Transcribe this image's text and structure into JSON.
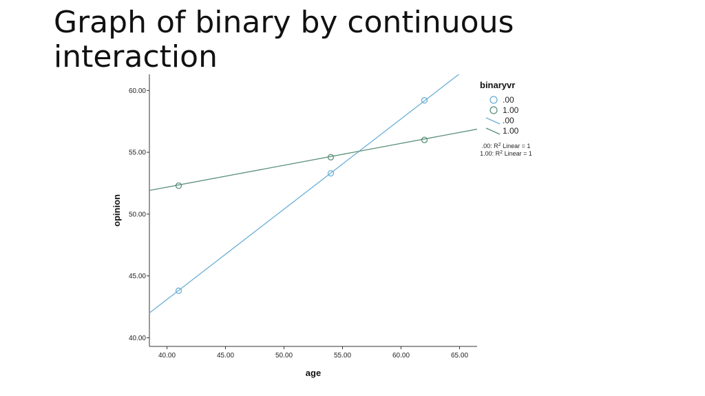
{
  "slide": {
    "title": "Graph of binary by continuous interaction"
  },
  "chart_data": {
    "type": "scatter",
    "xlabel": "age",
    "ylabel": "opinion",
    "xlim": [
      38.5,
      66.5
    ],
    "ylim": [
      39.3,
      61.3
    ],
    "x_ticks": [
      40,
      45,
      50,
      55,
      60,
      65
    ],
    "x_tick_labels": [
      "40.00",
      "45.00",
      "50.00",
      "55.00",
      "60.00",
      "65.00"
    ],
    "y_ticks": [
      40,
      45,
      50,
      55,
      60
    ],
    "y_tick_labels": [
      "40.00",
      "45.00",
      "50.00",
      "55.00",
      "60.00"
    ],
    "grid": false,
    "legend_placement": "top-right outside",
    "legend": {
      "title": "binaryvr",
      "entries": [
        {
          "label": ".00",
          "kind": "marker",
          "series": 0
        },
        {
          "label": "1.00",
          "kind": "marker",
          "series": 1
        },
        {
          "label": ".00",
          "kind": "line",
          "series": 0
        },
        {
          "label": "1.00",
          "kind": "line",
          "series": 1
        }
      ],
      "fit_notes": [
        {
          "prefix": ".00: R",
          "sup": "2",
          "suffix": " Linear = 1"
        },
        {
          "prefix": "1.00: R",
          "sup": "2",
          "suffix": " Linear = 1"
        }
      ]
    },
    "series": [
      {
        "name": ".00",
        "color": "#6aaed6",
        "points": [
          [
            41,
            43.8
          ],
          [
            54,
            53.3
          ],
          [
            62,
            59.2
          ]
        ],
        "fit": {
          "slope": 0.73,
          "intercept": 13.9
        }
      },
      {
        "name": "1.00",
        "color": "#5a8f78",
        "points": [
          [
            41,
            52.3
          ],
          [
            54,
            54.6
          ],
          [
            62,
            56.0
          ]
        ],
        "fit": {
          "slope": 0.177,
          "intercept": 45.1
        }
      }
    ]
  }
}
